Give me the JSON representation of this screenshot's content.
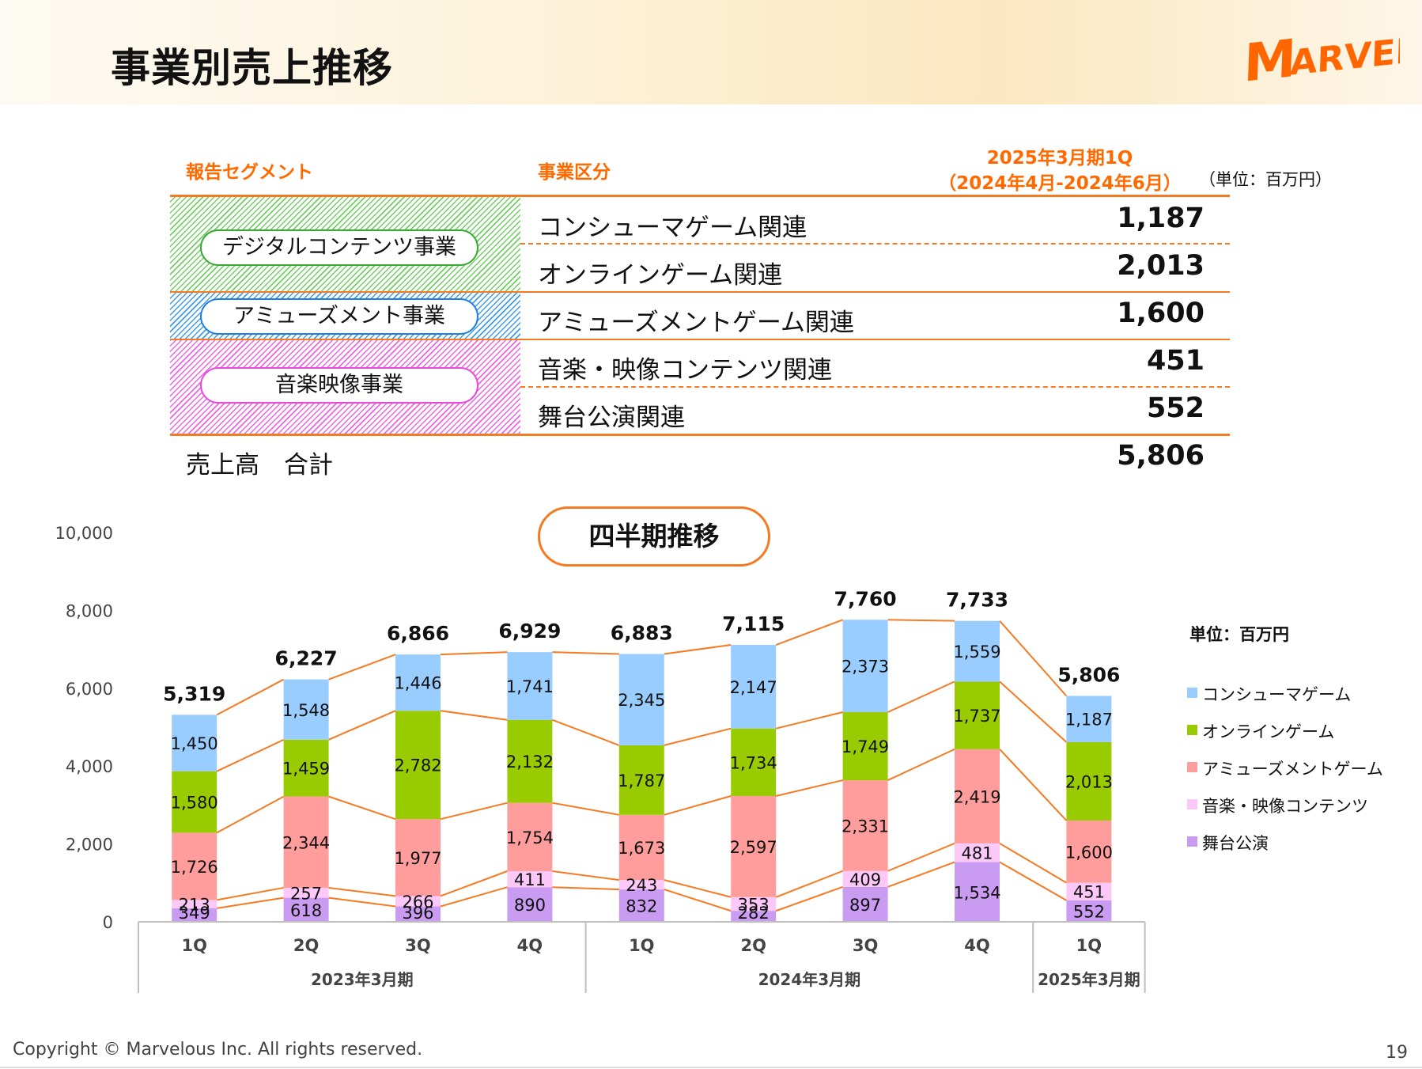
{
  "title": "事業別売上推移",
  "logo_text": "MARVELOUS!",
  "table": {
    "col_segment": "報告セグメント",
    "col_business": "事業区分",
    "col_period_line1": "2025年3月期1Q",
    "col_period_line2": "（2024年4月-2024年6月）",
    "unit": "（単位：百万円）",
    "segments": [
      "デジタルコンテンツ事業",
      "アミューズメント事業",
      "音楽映像事業"
    ],
    "rows": [
      {
        "business": "コンシューマゲーム関連",
        "value": "1,187"
      },
      {
        "business": "オンラインゲーム関連",
        "value": "2,013"
      },
      {
        "business": "アミューズメントゲーム関連",
        "value": "1,600"
      },
      {
        "business": "音楽・映像コンテンツ関連",
        "value": "451"
      },
      {
        "business": "舞台公演関連",
        "value": "552"
      }
    ],
    "total_label": "売上高　合計",
    "total_value": "5,806"
  },
  "chart_title": "四半期推移",
  "chart_unit": "単位：百万円",
  "chart_data": {
    "type": "bar",
    "stacked": true,
    "categories": [
      "1Q",
      "2Q",
      "3Q",
      "4Q",
      "1Q",
      "2Q",
      "3Q",
      "4Q",
      "1Q"
    ],
    "groups": [
      {
        "label": "2023年3月期",
        "count": 4
      },
      {
        "label": "2024年3月期",
        "count": 4
      },
      {
        "label": "2025年3月期",
        "count": 1
      }
    ],
    "series": [
      {
        "name": "舞台公演",
        "color": "#c99cf2",
        "values": [
          349,
          618,
          396,
          890,
          832,
          282,
          897,
          1534,
          552
        ]
      },
      {
        "name": "音楽・映像コンテンツ",
        "color": "#fbc8f8",
        "values": [
          213,
          257,
          266,
          411,
          243,
          353,
          409,
          481,
          451
        ]
      },
      {
        "name": "アミューズメントゲーム",
        "color": "#ff9c9c",
        "values": [
          1726,
          2344,
          1977,
          1754,
          1673,
          2597,
          2331,
          2419,
          1600
        ]
      },
      {
        "name": "オンラインゲーム",
        "color": "#99cc00",
        "values": [
          1580,
          1459,
          2782,
          2132,
          1787,
          1734,
          1749,
          1737,
          2013
        ]
      },
      {
        "name": "コンシューマゲーム",
        "color": "#99ccff",
        "values": [
          1450,
          1548,
          1446,
          1741,
          2345,
          2147,
          2373,
          1559,
          1187
        ]
      }
    ],
    "totals": [
      5319,
      6227,
      6866,
      6929,
      6883,
      7115,
      7760,
      7733,
      5806
    ],
    "ylim": [
      0,
      10000
    ],
    "yticks": [
      0,
      2000,
      4000,
      6000,
      8000,
      10000
    ],
    "ytick_labels": [
      "0",
      "2,000",
      "4,000",
      "6,000",
      "8,000",
      "10,000"
    ],
    "connector_color": "#f57a22",
    "legend_position": "right"
  },
  "footer": "Copyright © Marvelous Inc. All rights reserved.",
  "page_number": "19"
}
